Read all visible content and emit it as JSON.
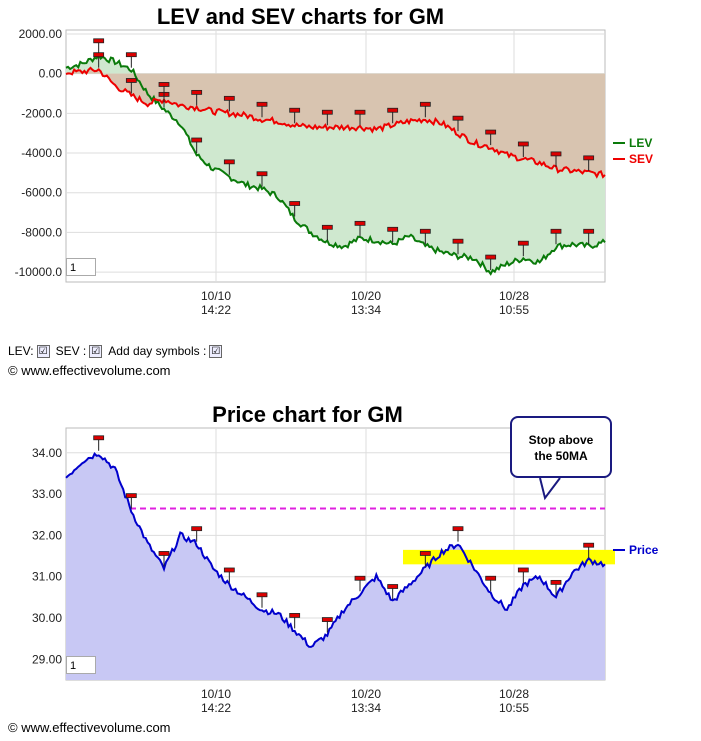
{
  "lev_sev": {
    "title": "LEV and SEV charts for GM",
    "zoom_value": "1",
    "y_ticks": [
      "2000.00",
      "0.00",
      "-2000.0",
      "-4000.0",
      "-6000.0",
      "-8000.0",
      "-10000.0"
    ],
    "x_ticks": [
      {
        "date": "10/10",
        "time": "14:22"
      },
      {
        "date": "10/20",
        "time": "13:34"
      },
      {
        "date": "10/28",
        "time": "10:55"
      }
    ],
    "legend": [
      {
        "name": "LEV",
        "color": "#0a7a0a"
      },
      {
        "name": "SEV",
        "color": "#ee0000"
      }
    ]
  },
  "controls": {
    "lev_label": "LEV:",
    "sev_label": "SEV :",
    "day_symbols_label": "Add day symbols :",
    "check_mark": "☑"
  },
  "copyright": "© www.effectivevolume.com",
  "price": {
    "title": "Price chart for GM",
    "zoom_value": "1",
    "y_ticks": [
      "34.00",
      "33.00",
      "32.00",
      "31.00",
      "30.00",
      "29.00"
    ],
    "x_ticks": [
      {
        "date": "10/10",
        "time": "14:22"
      },
      {
        "date": "10/20",
        "time": "13:34"
      },
      {
        "date": "10/28",
        "time": "10:55"
      }
    ],
    "legend": [
      {
        "name": "Price",
        "color": "#0000cc"
      }
    ],
    "callout": {
      "line1": "Stop above",
      "line2": "the 50MA"
    }
  },
  "chart_data": [
    {
      "type": "line",
      "title": "LEV and SEV charts for GM",
      "x_range": "10/01 – 11/03 (intraday)",
      "ylim": [
        -10500,
        2200
      ],
      "series": [
        {
          "name": "LEV",
          "color": "#0a7a0a",
          "values": [
            300,
            500,
            900,
            600,
            200,
            -1000,
            -1800,
            -2500,
            -4100,
            -4800,
            -5200,
            -5600,
            -5800,
            -6200,
            -7300,
            -8000,
            -8500,
            -8700,
            -8300,
            -8400,
            -8600,
            -8200,
            -8700,
            -9000,
            -9200,
            -9300,
            -10000,
            -9600,
            -9300,
            -9500,
            -8700,
            -8600,
            -8700,
            -8500
          ]
        },
        {
          "name": "SEV",
          "color": "#ee0000",
          "values": [
            50,
            100,
            200,
            -600,
            -1100,
            -1500,
            -1300,
            -1600,
            -1700,
            -1900,
            -2000,
            -2100,
            -2300,
            -2400,
            -2600,
            -2700,
            -2700,
            -2700,
            -2700,
            -2800,
            -2600,
            -2400,
            -2300,
            -2500,
            -3000,
            -3500,
            -3700,
            -4100,
            -4300,
            -4500,
            -4800,
            -4900,
            -5000,
            -5100
          ]
        }
      ]
    },
    {
      "type": "line",
      "title": "Price chart for GM",
      "x_range": "10/01 – 11/03 (intraday)",
      "ylim": [
        28.5,
        34.6
      ],
      "series": [
        {
          "name": "Price",
          "color": "#0000cc",
          "values": [
            33.4,
            33.8,
            34.0,
            33.6,
            32.6,
            31.8,
            31.2,
            32.0,
            31.8,
            31.2,
            30.8,
            30.5,
            30.2,
            30.1,
            29.7,
            29.3,
            29.6,
            30.2,
            30.6,
            31.0,
            30.4,
            30.8,
            31.2,
            31.6,
            31.8,
            31.2,
            30.6,
            30.2,
            30.8,
            31.0,
            30.5,
            31.1,
            31.4,
            31.3
          ]
        }
      ],
      "reference_line": {
        "label": "50MA",
        "value": 32.65,
        "color": "#e020e0",
        "style": "dashed"
      },
      "highlight_band": {
        "from": 31.3,
        "to": 31.65,
        "color": "#ffff00"
      }
    }
  ]
}
